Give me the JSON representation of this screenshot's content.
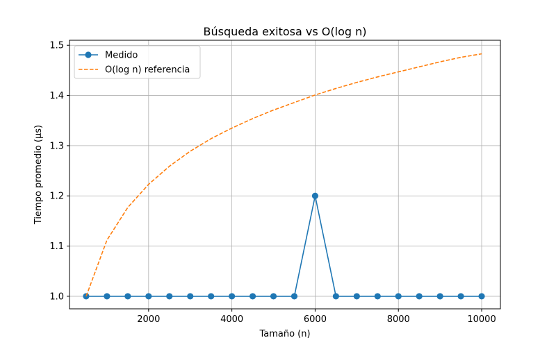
{
  "chart_data": {
    "type": "line",
    "title": "Búsqueda exitosa vs O(log n)",
    "xlabel": "Tamaño (n)",
    "ylabel": "Tiempo promedio (µs)",
    "xlim": [
      100,
      10450
    ],
    "ylim": [
      0.975,
      1.51
    ],
    "xticks": [
      2000,
      4000,
      6000,
      8000,
      10000
    ],
    "yticks": [
      1.0,
      1.1,
      1.2,
      1.3,
      1.4,
      1.5
    ],
    "grid": true,
    "legend_position": "top-left",
    "x": [
      500,
      1000,
      1500,
      2000,
      2500,
      3000,
      3500,
      4000,
      4500,
      5000,
      5500,
      6000,
      6500,
      7000,
      7500,
      8000,
      8500,
      9000,
      9500,
      10000
    ],
    "series": [
      {
        "name": "Medido",
        "style": "solid-marker",
        "color": "#1f77b4",
        "values": [
          1.0,
          1.0,
          1.0,
          1.0,
          1.0,
          1.0,
          1.0,
          1.0,
          1.0,
          1.0,
          1.0,
          1.2,
          1.0,
          1.0,
          1.0,
          1.0,
          1.0,
          1.0,
          1.0,
          1.0
        ]
      },
      {
        "name": "O(log n) referencia",
        "style": "dashed",
        "color": "#ff7f0e",
        "values": [
          1.0,
          1.112,
          1.177,
          1.223,
          1.259,
          1.289,
          1.314,
          1.335,
          1.354,
          1.371,
          1.386,
          1.401,
          1.414,
          1.426,
          1.437,
          1.447,
          1.457,
          1.467,
          1.476,
          1.483
        ]
      }
    ]
  }
}
